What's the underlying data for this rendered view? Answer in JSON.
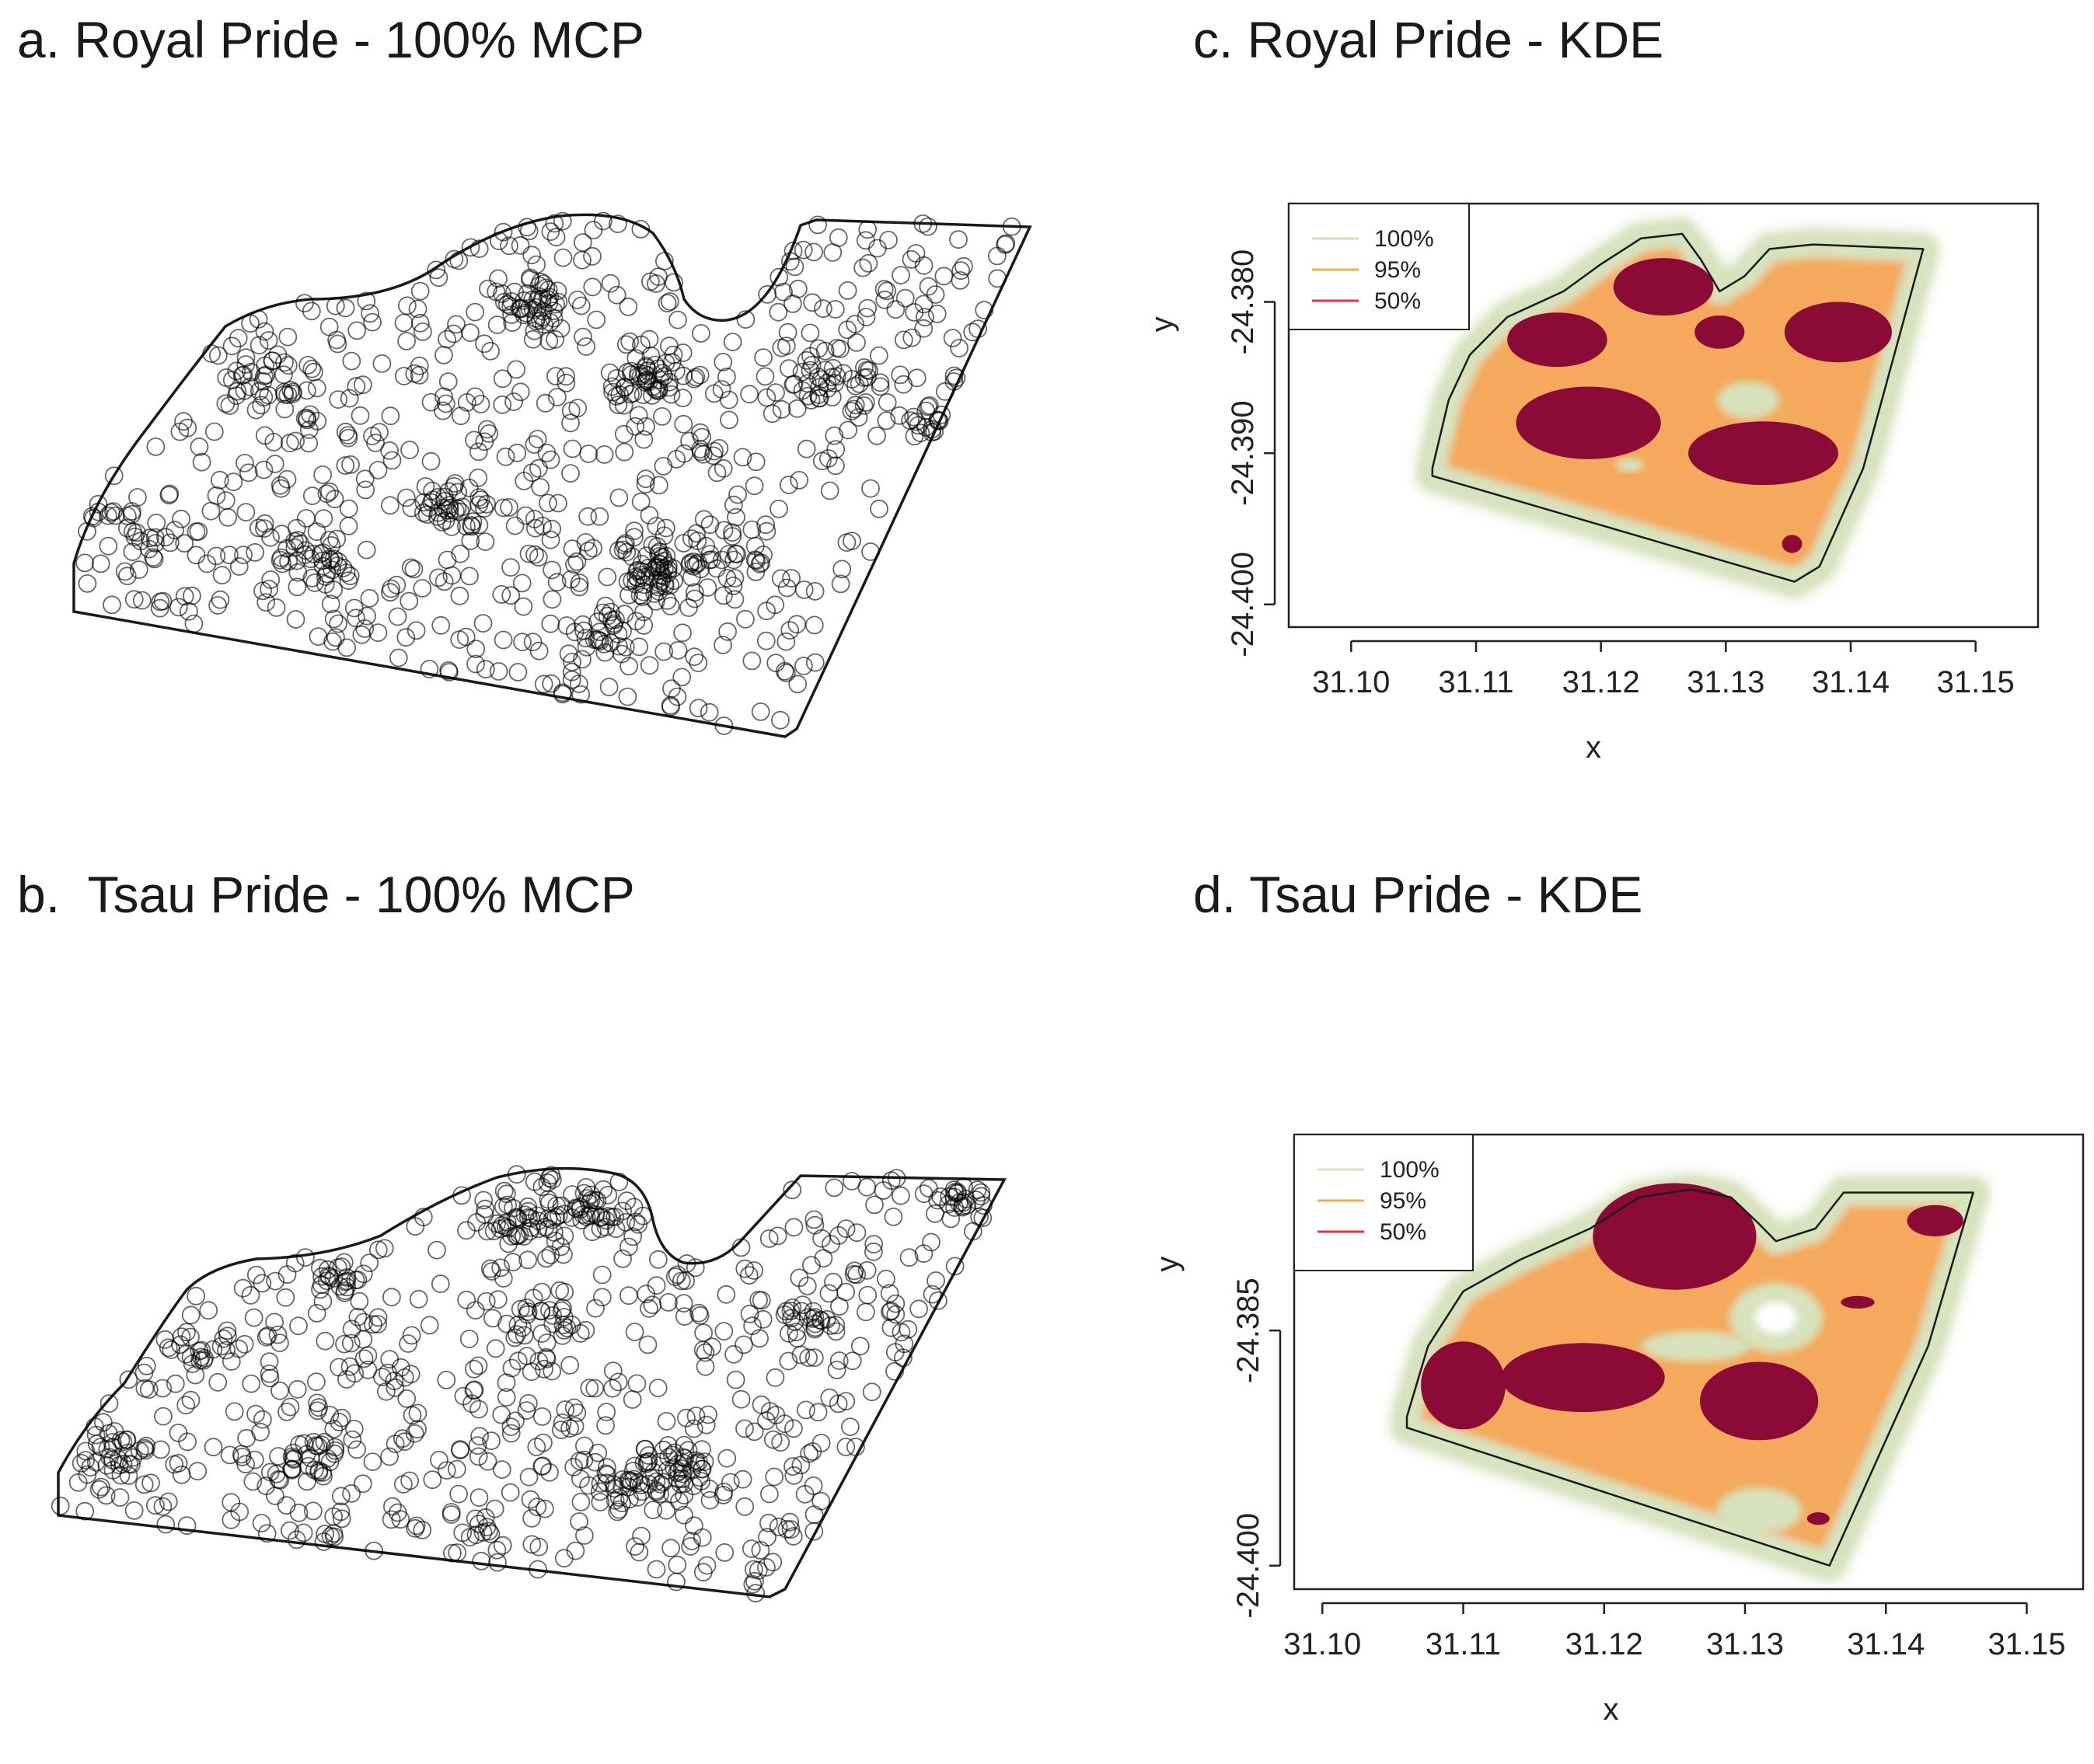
{
  "panels": {
    "a": {
      "title": "a. Royal Pride - 100% MCP"
    },
    "b": {
      "title": "b.  Tsau Pride - 100% MCP"
    },
    "c": {
      "title": "c. Royal Pride - KDE"
    },
    "d": {
      "title": "d. Tsau Pride - KDE"
    }
  },
  "colors": {
    "mcp_points": "#000000",
    "kde_100": "#d8e2bd",
    "kde_95": "#f4a95b",
    "kde_50": "#8c0a36",
    "legend_100_line": "#d7dfc2",
    "legend_95_line": "#f2b245",
    "legend_50_line": "#e8333f",
    "boundary": "#1a1a1a"
  },
  "chart_data": [
    {
      "id": "a",
      "type": "scatter",
      "title": "a. Royal Pride - 100% MCP",
      "xlabel": "",
      "ylabel": "",
      "marker": "open-circle",
      "note": "GPS fix locations enclosed by 100% minimum convex polygon (no axes shown)"
    },
    {
      "id": "b",
      "type": "scatter",
      "title": "b.  Tsau Pride - 100% MCP",
      "xlabel": "",
      "ylabel": "",
      "marker": "open-circle",
      "note": "GPS fix locations enclosed by 100% minimum convex polygon (no axes shown)"
    },
    {
      "id": "c",
      "type": "heatmap",
      "title": "c. Royal Pride - KDE",
      "xlabel": "x",
      "ylabel": "y",
      "xlim": [
        31.095,
        31.155
      ],
      "ylim": [
        -24.4015,
        -24.3735
      ],
      "xticks": [
        "31.10",
        "31.11",
        "31.12",
        "31.13",
        "31.14",
        "31.15"
      ],
      "xtick_values": [
        31.1,
        31.11,
        31.12,
        31.13,
        31.14,
        31.15
      ],
      "yticks": [
        "-24.380",
        "-24.390",
        "-24.400"
      ],
      "ytick_values": [
        -24.38,
        -24.39,
        -24.4
      ],
      "legend": {
        "position": "top-left",
        "entries": [
          "100%",
          "95%",
          "50%"
        ]
      },
      "isopleths": [
        "100%",
        "95%",
        "50%"
      ],
      "core_areas_50": [
        {
          "cx": 31.1165,
          "cy": -24.3825,
          "rx": 0.004,
          "ry": 0.0018
        },
        {
          "cx": 31.125,
          "cy": -24.379,
          "rx": 0.004,
          "ry": 0.0019
        },
        {
          "cx": 31.1295,
          "cy": -24.382,
          "rx": 0.002,
          "ry": 0.0011
        },
        {
          "cx": 31.139,
          "cy": -24.382,
          "rx": 0.0043,
          "ry": 0.002
        },
        {
          "cx": 31.119,
          "cy": -24.388,
          "rx": 0.0058,
          "ry": 0.0024
        },
        {
          "cx": 31.133,
          "cy": -24.39,
          "rx": 0.006,
          "ry": 0.0021
        },
        {
          "cx": 31.1353,
          "cy": -24.396,
          "rx": 0.0008,
          "ry": 0.0006
        }
      ],
      "mcp_boundary": [
        [
          31.1065,
          -24.391
        ],
        [
          31.1078,
          -24.3865
        ],
        [
          31.1095,
          -24.3835
        ],
        [
          31.1125,
          -24.381
        ],
        [
          31.117,
          -24.3793
        ],
        [
          31.12,
          -24.3775
        ],
        [
          31.1232,
          -24.3758
        ],
        [
          31.1265,
          -24.3755
        ],
        [
          31.128,
          -24.3772
        ],
        [
          31.1295,
          -24.3793
        ],
        [
          31.1315,
          -24.3783
        ],
        [
          31.1335,
          -24.3765
        ],
        [
          31.137,
          -24.3762
        ],
        [
          31.1458,
          -24.3765
        ],
        [
          31.141,
          -24.391
        ],
        [
          31.1375,
          -24.3975
        ],
        [
          31.1355,
          -24.3985
        ],
        [
          31.1065,
          -24.3915
        ]
      ]
    },
    {
      "id": "d",
      "type": "heatmap",
      "title": "d. Tsau Pride - KDE",
      "xlabel": "x",
      "ylabel": "y",
      "xlim": [
        31.098,
        31.154
      ],
      "ylim": [
        -24.4015,
        -24.3725
      ],
      "xticks": [
        "31.10",
        "31.11",
        "31.12",
        "31.13",
        "31.14",
        "31.15"
      ],
      "xtick_values": [
        31.1,
        31.11,
        31.12,
        31.13,
        31.14,
        31.15
      ],
      "yticks": [
        "-24.385",
        "-24.400"
      ],
      "ytick_values": [
        -24.385,
        -24.4
      ],
      "legend": {
        "position": "top-left",
        "entries": [
          "100%",
          "95%",
          "50%"
        ]
      },
      "isopleths": [
        "100%",
        "95%",
        "50%"
      ],
      "core_areas_50": [
        {
          "cx": 31.11,
          "cy": -24.3885,
          "rx": 0.003,
          "ry": 0.0028
        },
        {
          "cx": 31.125,
          "cy": -24.379,
          "rx": 0.0058,
          "ry": 0.0034
        },
        {
          "cx": 31.1435,
          "cy": -24.378,
          "rx": 0.002,
          "ry": 0.001
        },
        {
          "cx": 31.138,
          "cy": -24.3832,
          "rx": 0.0012,
          "ry": 0.0004
        },
        {
          "cx": 31.1185,
          "cy": -24.388,
          "rx": 0.0058,
          "ry": 0.0022
        },
        {
          "cx": 31.131,
          "cy": -24.3895,
          "rx": 0.0042,
          "ry": 0.0025
        },
        {
          "cx": 31.1352,
          "cy": -24.397,
          "rx": 0.0008,
          "ry": 0.0004
        }
      ],
      "mcp_boundary": [
        [
          31.106,
          -24.3905
        ],
        [
          31.1075,
          -24.386
        ],
        [
          31.11,
          -24.3825
        ],
        [
          31.114,
          -24.3805
        ],
        [
          31.119,
          -24.3785
        ],
        [
          31.1225,
          -24.3765
        ],
        [
          31.1262,
          -24.376
        ],
        [
          31.129,
          -24.3765
        ],
        [
          31.131,
          -24.3782
        ],
        [
          31.1322,
          -24.3793
        ],
        [
          31.135,
          -24.3785
        ],
        [
          31.137,
          -24.3762
        ],
        [
          31.1462,
          -24.3762
        ],
        [
          31.143,
          -24.386
        ],
        [
          31.136,
          -24.4
        ],
        [
          31.106,
          -24.3912
        ]
      ]
    }
  ]
}
